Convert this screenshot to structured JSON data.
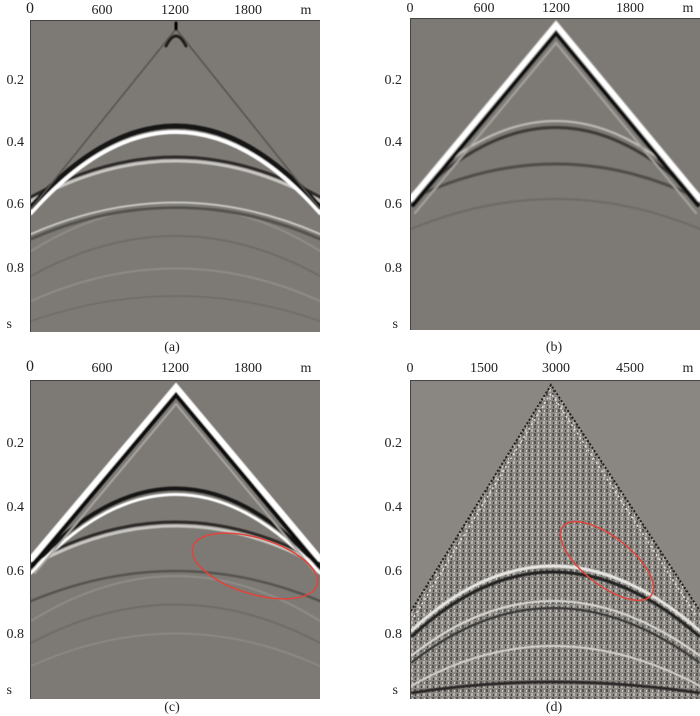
{
  "figure": {
    "panels": [
      {
        "id": "a",
        "caption": "(a)",
        "x_ticks": [
          "0",
          "600",
          "1200",
          "1800"
        ],
        "x_unit": "m",
        "y_ticks": [
          "0.2",
          "0.4",
          "0.6",
          "0.8"
        ],
        "y_unit": "s"
      },
      {
        "id": "b",
        "caption": "(b)",
        "x_ticks": [
          "0",
          "600",
          "1200",
          "1800"
        ],
        "x_unit": "m",
        "y_ticks": [
          "0.2",
          "0.4",
          "0.6",
          "0.8"
        ],
        "y_unit": "s"
      },
      {
        "id": "c",
        "caption": "(c)",
        "x_ticks": [
          "0",
          "600",
          "1200",
          "1800"
        ],
        "x_unit": "m",
        "y_ticks": [
          "0.2",
          "0.4",
          "0.6",
          "0.8"
        ],
        "y_unit": "s"
      },
      {
        "id": "d",
        "caption": "(d)",
        "x_ticks": [
          "0",
          "1500",
          "3000",
          "4500"
        ],
        "x_unit": "m",
        "y_ticks": [
          "0.2",
          "0.4",
          "0.6",
          "0.8"
        ],
        "y_unit": "s"
      }
    ],
    "colors": {
      "background": "#7d7a75",
      "highlight_ellipse": "#e0443a"
    }
  }
}
